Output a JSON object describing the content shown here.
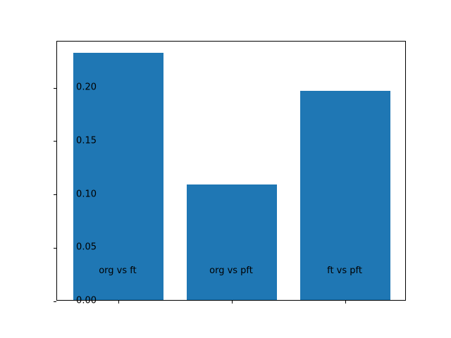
{
  "chart_data": {
    "type": "bar",
    "title": "",
    "xlabel": "",
    "ylabel": "",
    "categories": [
      "org vs ft",
      "org vs pft",
      "ft vs pft"
    ],
    "values": [
      0.232,
      0.108,
      0.196
    ],
    "ylim": [
      0,
      0.2436
    ],
    "yticks": [
      0.0,
      0.05,
      0.1,
      0.15,
      0.2
    ],
    "ytick_labels": [
      "0.00",
      "0.05",
      "0.10",
      "0.15",
      "0.20"
    ],
    "bar_width_fraction": 0.8,
    "x_margin_fraction": 0.05,
    "bar_color": "#1f77b4",
    "spine_color": "#000000",
    "background_color": "#ffffff",
    "grid": false,
    "legend_position": "none"
  }
}
